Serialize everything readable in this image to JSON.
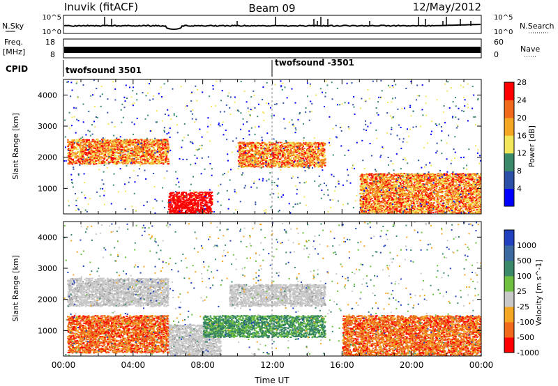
{
  "header": {
    "station": "Inuvik (fitACF)",
    "beam": "Beam 09",
    "date": "12/May/2012"
  },
  "top_panel": {
    "left_label": "N.Sky",
    "left_ticks": [
      "10^5",
      "10^0"
    ],
    "right_ticks": [
      "10^5",
      "10^0"
    ],
    "right_label": "N.Search"
  },
  "freq_panel": {
    "left_label_1": "Freq.",
    "left_label_2": "[MHz]",
    "left_ticks": [
      "18",
      "8"
    ],
    "right_ticks": [
      "60",
      "0"
    ],
    "right_label": "Nave"
  },
  "cpid": {
    "label": "CPID",
    "entries": [
      "twofsound 3501",
      "twofsound -3501"
    ]
  },
  "chart_data": [
    {
      "type": "heatmap",
      "name": "power",
      "ylabel": "Slant Range [km]",
      "yticks": [
        "1000",
        "2000",
        "3000",
        "4000"
      ],
      "ylim": [
        180,
        4500
      ],
      "colorbar": {
        "label": "Power [dB]",
        "ticks": [
          "4",
          "8",
          "12",
          "16",
          "20",
          "24",
          "28"
        ],
        "colors": [
          "#0000ff",
          "#2b4ea6",
          "#3a8a6a",
          "#f2e65a",
          "#f5a623",
          "#f06a1a",
          "#ff0000"
        ]
      },
      "features": [
        {
          "x_hours": [
            0.2,
            6.0
          ],
          "range_km": [
            1800,
            2600
          ],
          "level": "high"
        },
        {
          "x_hours": [
            6.0,
            8.5
          ],
          "range_km": [
            180,
            900
          ],
          "level": "max"
        },
        {
          "x_hours": [
            10.0,
            15.0
          ],
          "range_km": [
            1700,
            2500
          ],
          "level": "high"
        },
        {
          "x_hours": [
            17.0,
            24.0
          ],
          "range_km": [
            180,
            1500
          ],
          "level": "high"
        }
      ]
    },
    {
      "type": "heatmap",
      "name": "velocity",
      "xlabel": "Time UT",
      "ylabel": "Slant Range [km]",
      "yticks": [
        "1000",
        "2000",
        "3000",
        "4000"
      ],
      "xticks": [
        "00:00",
        "04:00",
        "08:00",
        "12:00",
        "16:00",
        "20:00",
        "00:00"
      ],
      "xlim_hours": [
        0,
        24
      ],
      "ylim": [
        180,
        4500
      ],
      "colorbar": {
        "label": "Velocity [m s^-1]",
        "ticks": [
          "1000",
          "500",
          "100",
          "25",
          "-25",
          "-100",
          "-500",
          "-1000"
        ],
        "colors": [
          "#2040c0",
          "#3a6aa0",
          "#3a8a6a",
          "#70c040",
          "#c8c8c8",
          "#f5a623",
          "#f06a1a",
          "#ff0000"
        ]
      },
      "features": [
        {
          "x_hours": [
            0.2,
            6.0
          ],
          "range_km": [
            1800,
            2700
          ],
          "level": "ground-scatter"
        },
        {
          "x_hours": [
            0.2,
            6.0
          ],
          "range_km": [
            300,
            1500
          ],
          "level": "negative"
        },
        {
          "x_hours": [
            6.0,
            9.0
          ],
          "range_km": [
            180,
            1200
          ],
          "level": "ground-scatter"
        },
        {
          "x_hours": [
            8.0,
            15.0
          ],
          "range_km": [
            800,
            1500
          ],
          "level": "positive"
        },
        {
          "x_hours": [
            9.5,
            15.0
          ],
          "range_km": [
            1800,
            2500
          ],
          "level": "ground-scatter"
        },
        {
          "x_hours": [
            16.0,
            24.0
          ],
          "range_km": [
            180,
            1500
          ],
          "level": "negative"
        }
      ]
    }
  ]
}
